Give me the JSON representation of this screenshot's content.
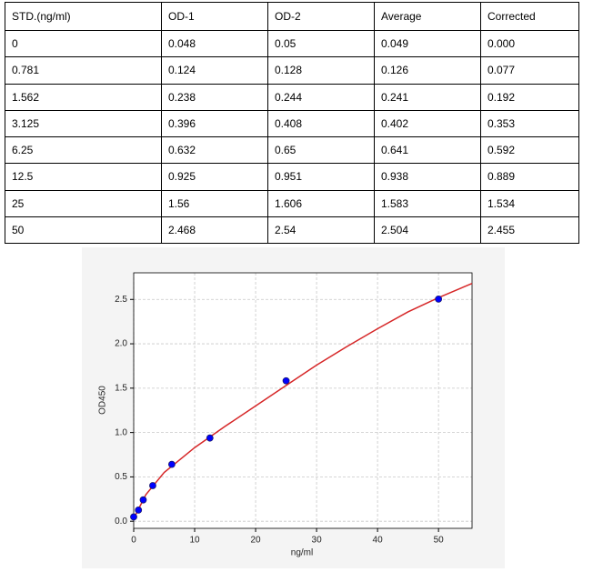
{
  "table": {
    "header": [
      "STD.(ng/ml)",
      "OD-1",
      "OD-2",
      "Average",
      "Corrected"
    ],
    "rows": [
      [
        "0",
        "0.048",
        "0.05",
        "0.049",
        "0.000"
      ],
      [
        "0.781",
        "0.124",
        "0.128",
        "0.126",
        "0.077"
      ],
      [
        "1.562",
        "0.238",
        "0.244",
        "0.241",
        "0.192"
      ],
      [
        "3.125",
        "0.396",
        "0.408",
        "0.402",
        "0.353"
      ],
      [
        "6.25",
        "0.632",
        "0.65",
        "0.641",
        "0.592"
      ],
      [
        "12.5",
        "0.925",
        "0.951",
        "0.938",
        "0.889"
      ],
      [
        "25",
        "1.56",
        "1.606",
        "1.583",
        "1.534"
      ],
      [
        "50",
        "2.468",
        "2.54",
        "2.504",
        "2.455"
      ]
    ]
  },
  "chart_data": {
    "type": "scatter",
    "x_label": "ng/ml",
    "y_label": "OD450",
    "xlim": [
      0,
      55.5
    ],
    "xticks": [
      0,
      10,
      20,
      30,
      40,
      50
    ],
    "ylim": [
      -0.08,
      2.8
    ],
    "yticks": [
      {
        "value": 0,
        "label": "0.0"
      },
      {
        "value": 0.5,
        "label": "0.5"
      },
      {
        "value": 1,
        "label": "1.0"
      },
      {
        "value": 1.5,
        "label": "1.5"
      },
      {
        "value": 2,
        "label": "2.0"
      },
      {
        "value": 2.5,
        "label": "2.5"
      }
    ],
    "grid": true,
    "series": [
      {
        "type": "line",
        "color": "#d62728",
        "x": [
          0,
          2,
          5,
          10,
          15,
          20,
          25,
          30,
          35,
          40,
          45,
          50,
          55.5
        ],
        "values": [
          0.03,
          0.3,
          0.55,
          0.83,
          1.07,
          1.3,
          1.53,
          1.76,
          1.97,
          2.17,
          2.36,
          2.52,
          2.68
        ]
      },
      {
        "type": "scatter",
        "color": "#0000ff",
        "x": [
          0,
          0.781,
          1.562,
          3.125,
          6.25,
          12.5,
          25,
          50
        ],
        "values": [
          0.049,
          0.126,
          0.241,
          0.402,
          0.641,
          0.938,
          1.583,
          2.504
        ]
      }
    ]
  }
}
